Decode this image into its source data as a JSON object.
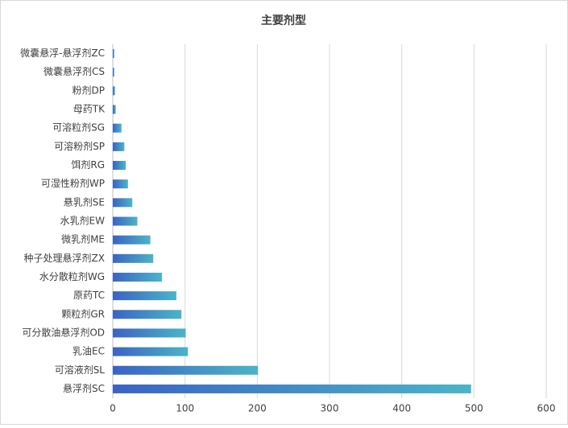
{
  "chart_data": {
    "type": "bar",
    "orientation": "horizontal",
    "title": "主要剂型",
    "categories": [
      "微囊悬浮-悬浮剂ZC",
      "微囊悬浮剂CS",
      "粉剂DP",
      "母药TK",
      "可溶粒剂SG",
      "可溶粉剂SP",
      "饵剂RG",
      "可湿性粉剂WP",
      "悬乳剂SE",
      "水乳剂EW",
      "微乳剂ME",
      "种子处理悬浮剂ZX",
      "水分散粒剂WG",
      "原药TC",
      "颗粒剂GR",
      "可分散油悬浮剂OD",
      "乳油EC",
      "可溶液剂SL",
      "悬浮剂SC"
    ],
    "values": [
      2,
      2,
      3,
      4,
      12,
      16,
      18,
      21,
      27,
      34,
      52,
      56,
      68,
      88,
      95,
      101,
      104,
      201,
      496
    ],
    "colors": [
      "#3b63c2",
      "#4bb4c8"
    ],
    "xlim": [
      0,
      600
    ],
    "xticks": [
      0,
      100,
      200,
      300,
      400,
      500,
      600
    ],
    "grid": true
  }
}
